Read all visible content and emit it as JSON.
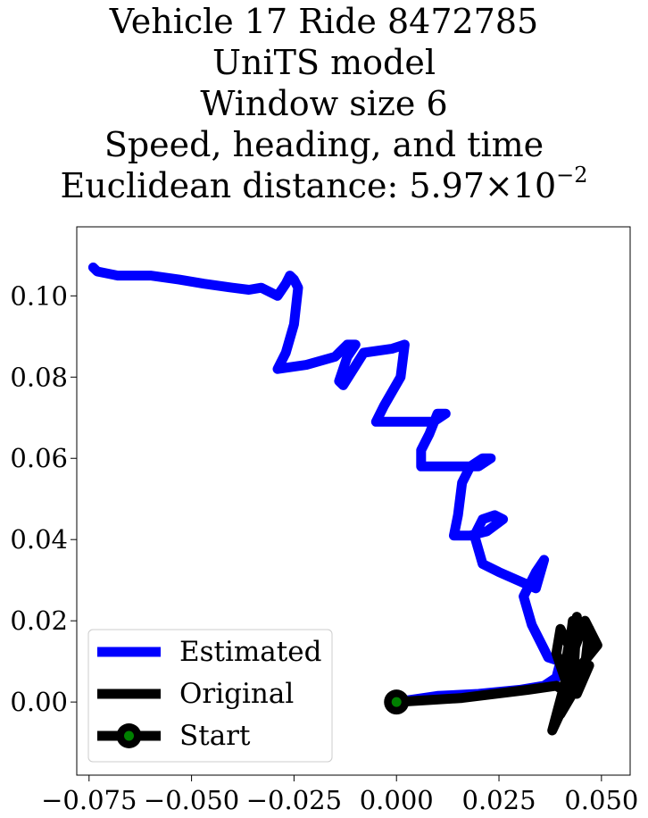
{
  "chart_data": {
    "type": "line",
    "title_lines": [
      "Vehicle 17 Ride 8472785",
      "UniTS model",
      "Window size 6",
      "Speed, heading, and time"
    ],
    "title_metric_label": "Euclidean distance: 5.97",
    "title_metric_times": "×",
    "title_metric_base": "10",
    "title_metric_exponent": "−2",
    "xlim": [
      -0.078,
      0.057
    ],
    "ylim": [
      -0.018,
      0.117
    ],
    "x_ticks": [
      -0.075,
      -0.05,
      -0.025,
      0.0,
      0.025,
      0.05
    ],
    "x_tick_labels": [
      "−0.075",
      "−0.050",
      "−0.025",
      "0.000",
      "0.025",
      "0.050"
    ],
    "y_ticks": [
      0.0,
      0.02,
      0.04,
      0.06,
      0.08,
      0.1
    ],
    "y_tick_labels": [
      "0.00",
      "0.02",
      "0.04",
      "0.06",
      "0.08",
      "0.10"
    ],
    "grid": false,
    "legend_position": "lower-left",
    "legend": [
      "Estimated",
      "Original",
      "Start"
    ],
    "series": [
      {
        "name": "Estimated",
        "color": "#0000ff",
        "x": [
          0.0,
          0.01,
          0.02,
          0.03,
          0.036,
          0.039,
          0.04,
          0.037,
          0.036,
          0.033,
          0.031,
          0.034,
          0.036,
          0.034,
          0.025,
          0.021,
          0.019,
          0.021,
          0.024,
          0.026,
          0.022,
          0.018,
          0.014,
          0.015,
          0.016,
          0.018,
          0.021,
          0.023,
          0.02,
          0.012,
          0.006,
          0.006,
          0.008,
          0.01,
          0.012,
          0.009,
          0.005,
          -0.002,
          -0.005,
          -0.003,
          0.001,
          0.002,
          -0.001,
          -0.008,
          -0.013,
          -0.014,
          -0.012,
          -0.01,
          -0.012,
          -0.015,
          -0.022,
          -0.029,
          -0.027,
          -0.025,
          -0.024,
          -0.025,
          -0.026,
          -0.027,
          -0.029,
          -0.033,
          -0.036,
          -0.04,
          -0.047,
          -0.053,
          -0.06,
          -0.068,
          -0.073,
          -0.074
        ],
        "y": [
          0.0,
          0.0015,
          0.002,
          0.003,
          0.004,
          0.006,
          0.01,
          0.011,
          0.013,
          0.019,
          0.026,
          0.032,
          0.035,
          0.028,
          0.032,
          0.034,
          0.041,
          0.045,
          0.046,
          0.045,
          0.042,
          0.041,
          0.041,
          0.046,
          0.054,
          0.058,
          0.06,
          0.06,
          0.058,
          0.058,
          0.058,
          0.062,
          0.066,
          0.071,
          0.071,
          0.069,
          0.069,
          0.069,
          0.069,
          0.073,
          0.08,
          0.088,
          0.087,
          0.086,
          0.078,
          0.079,
          0.085,
          0.088,
          0.088,
          0.085,
          0.083,
          0.082,
          0.086,
          0.093,
          0.102,
          0.104,
          0.105,
          0.103,
          0.1,
          0.102,
          0.1015,
          0.102,
          0.103,
          0.104,
          0.105,
          0.105,
          0.106,
          0.107
        ]
      },
      {
        "name": "Original",
        "color": "#000000",
        "x": [
          0.0,
          0.008,
          0.016,
          0.024,
          0.032,
          0.039,
          0.042,
          0.044,
          0.038,
          0.043,
          0.046,
          0.049,
          0.041,
          0.043,
          0.047,
          0.046,
          0.041,
          0.044,
          0.047,
          0.04,
          0.042,
          0.044,
          0.043,
          0.041,
          0.042,
          0.04,
          0.039,
          0.041,
          0.044,
          0.045
        ],
        "y": [
          0.0,
          0.0005,
          0.001,
          0.002,
          0.003,
          0.004,
          0.002,
          0.006,
          -0.007,
          0.012,
          0.02,
          0.014,
          0.004,
          0.02,
          0.018,
          0.009,
          0.006,
          0.002,
          0.009,
          -0.003,
          0.011,
          0.021,
          0.003,
          0.008,
          0.014,
          0.018,
          0.012,
          0.006,
          0.004,
          0.009
        ]
      }
    ],
    "start_point": {
      "x": 0.0,
      "y": 0.0,
      "outer_color": "#000000",
      "inner_color": "#008000"
    }
  }
}
